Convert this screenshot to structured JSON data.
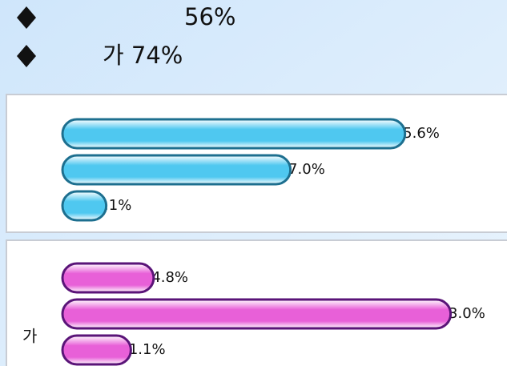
{
  "bullets": [
    "56%",
    "가 74%"
  ],
  "chart_data": [
    {
      "type": "bar",
      "categories": [
        null,
        null,
        null
      ],
      "values": [
        55.6,
        37.0,
        7.1
      ],
      "value_labels": [
        "55.6%",
        "37.0%",
        "7.1%"
      ],
      "color": "#4fc8f0",
      "xlim": [
        0,
        65
      ]
    },
    {
      "type": "bar",
      "categories": [
        null,
        null,
        "가"
      ],
      "values": [
        14.8,
        63.0,
        11.1
      ],
      "value_labels": [
        "14.8%",
        "63.0%",
        "11.1%"
      ],
      "color": "#e860d8",
      "xlim": [
        0,
        65
      ]
    }
  ]
}
